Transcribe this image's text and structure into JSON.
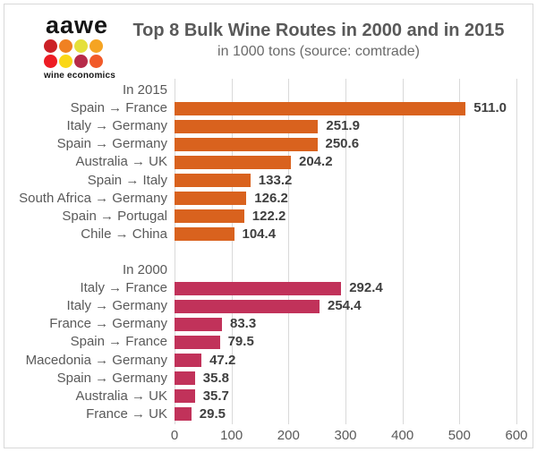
{
  "logo": {
    "text": "aawe",
    "tagline": "wine economics",
    "dot_colors": [
      [
        "#cb2127",
        "#f08122",
        "#e5e03a",
        "#f5a423"
      ],
      [
        "#ed1c24",
        "#fad717",
        "#b72b49",
        "#f15a29"
      ]
    ]
  },
  "chart_data": {
    "type": "bar",
    "orientation": "horizontal",
    "title": "Top 8 Bulk Wine Routes in 2000 and in 2015",
    "subtitle": "in 1000 tons (source: comtrade)",
    "xlim": [
      0,
      600
    ],
    "x_ticks": [
      0,
      100,
      200,
      300,
      400,
      500,
      600
    ],
    "grid": "vertical",
    "legend": "none",
    "groups": [
      {
        "label": "In 2015",
        "color": "#d9621e",
        "items": [
          {
            "route": "Spain → France",
            "value": 511.0,
            "display": "511.0"
          },
          {
            "route": "Italy → Germany",
            "value": 251.9,
            "display": "251.9"
          },
          {
            "route": "Spain → Germany",
            "value": 250.6,
            "display": "250.6"
          },
          {
            "route": "Australia → UK",
            "value": 204.2,
            "display": "204.2"
          },
          {
            "route": "Spain → Italy",
            "value": 133.2,
            "display": "133.2"
          },
          {
            "route": "South Africa → Germany",
            "value": 126.2,
            "display": "126.2"
          },
          {
            "route": "Spain → Portugal",
            "value": 122.2,
            "display": "122.2"
          },
          {
            "route": "Chile → China",
            "value": 104.4,
            "display": "104.4"
          }
        ]
      },
      {
        "label": "In 2000",
        "color": "#c1325a",
        "items": [
          {
            "route": "Italy → France",
            "value": 292.4,
            "display": "292.4"
          },
          {
            "route": "Italy → Germany",
            "value": 254.4,
            "display": "254.4"
          },
          {
            "route": "France → Germany",
            "value": 83.3,
            "display": "83.3"
          },
          {
            "route": "Spain → France",
            "value": 79.5,
            "display": "79.5"
          },
          {
            "route": "Macedonia → Germany",
            "value": 47.2,
            "display": "47.2"
          },
          {
            "route": "Spain → Germany",
            "value": 35.8,
            "display": "35.8"
          },
          {
            "route": "Australia → UK",
            "value": 35.7,
            "display": "35.7"
          },
          {
            "route": "France → UK",
            "value": 29.5,
            "display": "29.5"
          }
        ]
      }
    ]
  }
}
